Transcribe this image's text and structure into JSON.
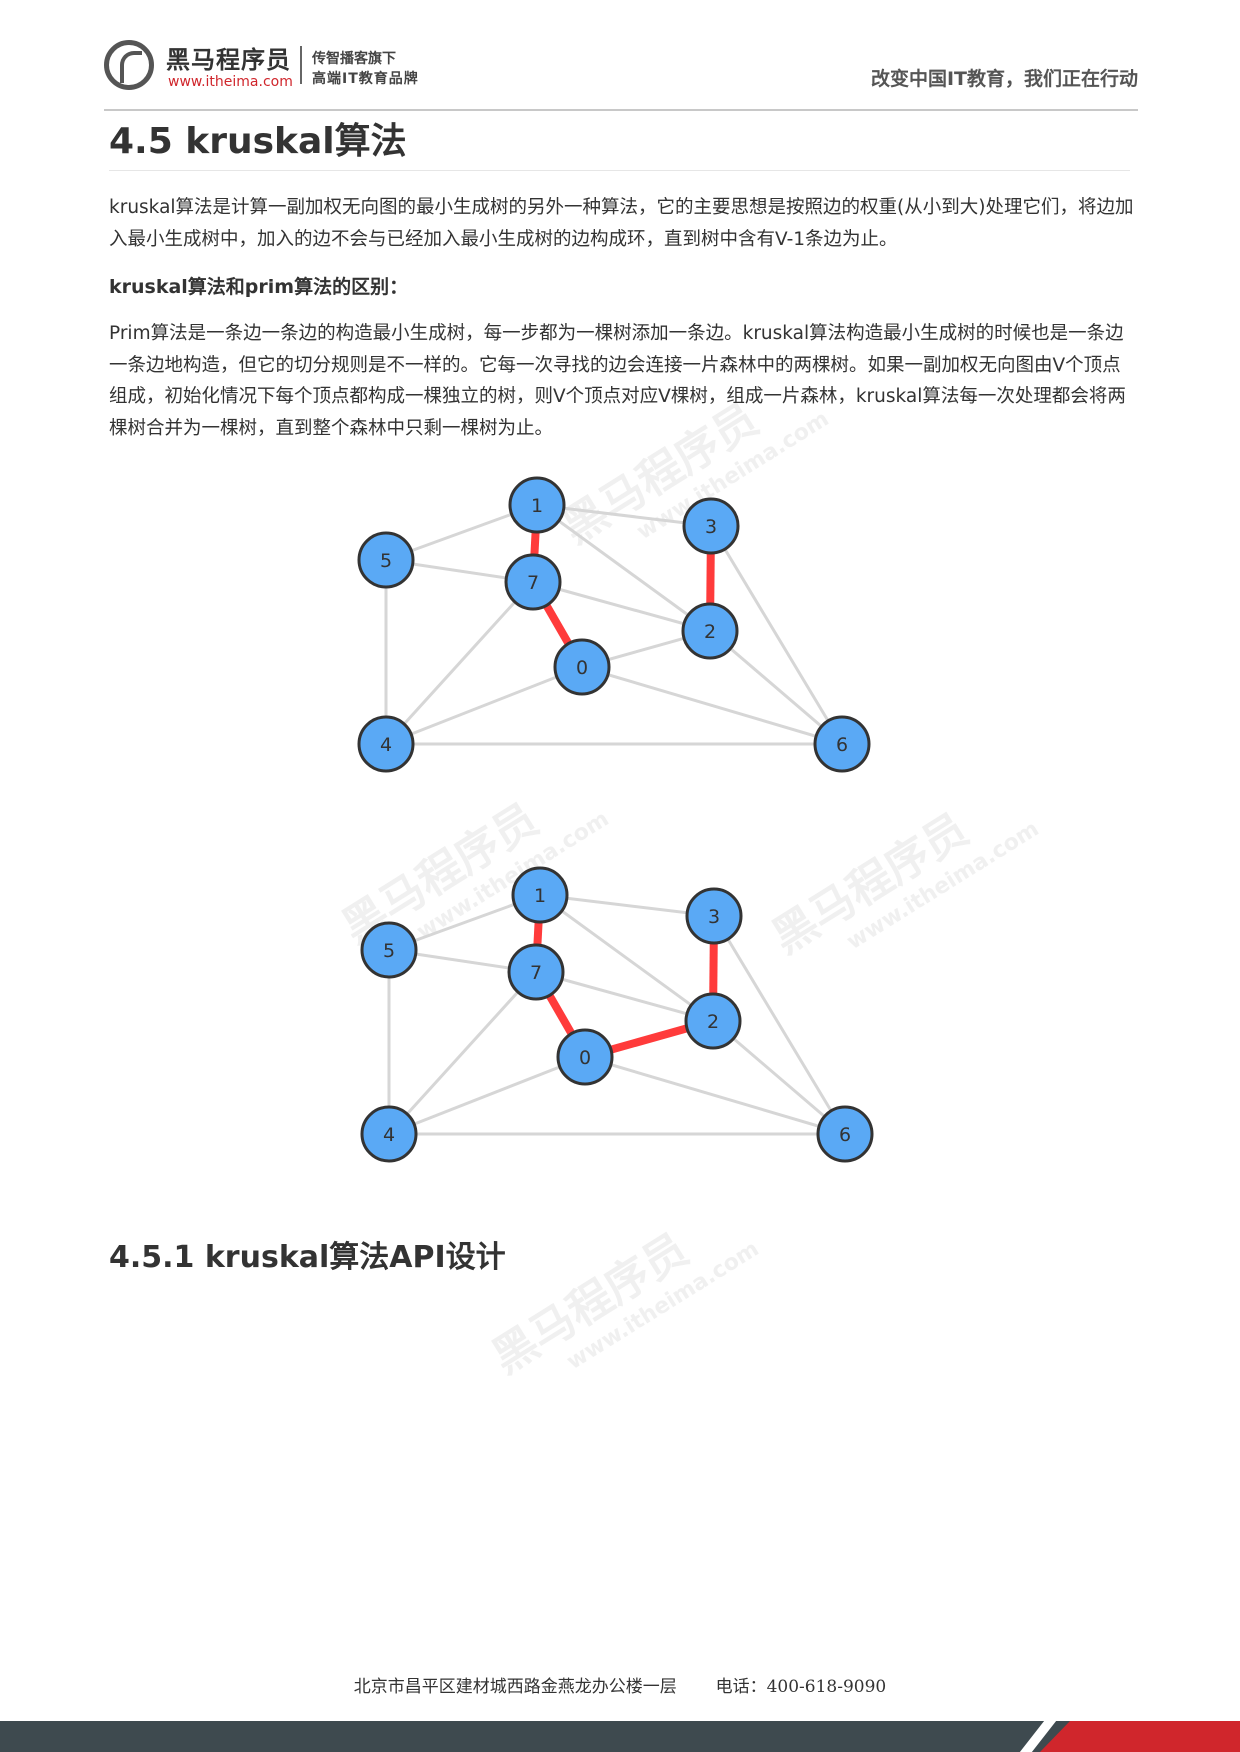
{
  "header": {
    "brand_name": "黑马程序员",
    "brand_url": "www.itheima.com",
    "slogan_line1": "传智播客旗下",
    "slogan_line2": "高端IT教育品牌",
    "tagline": "改变中国IT教育，我们正在行动"
  },
  "section": {
    "title": "4.5 kruskal算法",
    "intro": "kruskal算法是计算一副加权无向图的最小生成树的另外一种算法，它的主要思想是按照边的权重(从小到大)处理它们，将边加入最小生成树中，加入的边不会与已经加入最小生成树的边构成环，直到树中含有V-1条边为止。",
    "difference_heading": "kruskal算法和prim算法的区别：",
    "difference_text": "Prim算法是一条边一条边的构造最小生成树，每一步都为一棵树添加一条边。kruskal算法构造最小生成树的时候也是一条边一条边地构造，但它的切分规则是不一样的。它每一次寻找的边会连接一片森林中的两棵树。如果一副加权无向图由V个顶点组成，初始化情况下每个顶点都构成一棵独立的树，则V个顶点对应V棵树，组成一片森林，kruskal算法每一次处理都会将两棵树合并为一棵树，直到整个森林中只剩一棵树为止。",
    "subsection_title": "4.5.1 kruskal算法API设计"
  },
  "graphs": {
    "vertices": [
      "0",
      "1",
      "2",
      "3",
      "4",
      "5",
      "6",
      "7"
    ],
    "edges": [
      [
        "1",
        "5"
      ],
      [
        "1",
        "3"
      ],
      [
        "1",
        "2"
      ],
      [
        "1",
        "7"
      ],
      [
        "5",
        "7"
      ],
      [
        "5",
        "4"
      ],
      [
        "7",
        "2"
      ],
      [
        "7",
        "0"
      ],
      [
        "7",
        "4"
      ],
      [
        "0",
        "4"
      ],
      [
        "0",
        "2"
      ],
      [
        "0",
        "6"
      ],
      [
        "3",
        "2"
      ],
      [
        "3",
        "6"
      ],
      [
        "2",
        "6"
      ],
      [
        "4",
        "6"
      ]
    ],
    "graph_before_highlighted": [
      [
        "1",
        "7"
      ],
      [
        "7",
        "0"
      ],
      [
        "3",
        "2"
      ]
    ],
    "graph_after_highlighted": [
      [
        "1",
        "7"
      ],
      [
        "7",
        "0"
      ],
      [
        "3",
        "2"
      ],
      [
        "0",
        "2"
      ]
    ]
  },
  "watermark": {
    "text": "黑马程序员",
    "url": "www.itheima.com"
  },
  "footer": {
    "address": "北京市昌平区建材城西路金燕龙办公楼一层",
    "phone_label": "电话：",
    "phone": "400-618-9090"
  },
  "colors": {
    "node_fill": "#5aa9f5",
    "node_stroke": "#333333",
    "highlight": "#ff3b3b",
    "edge": "#d6d6d6"
  }
}
